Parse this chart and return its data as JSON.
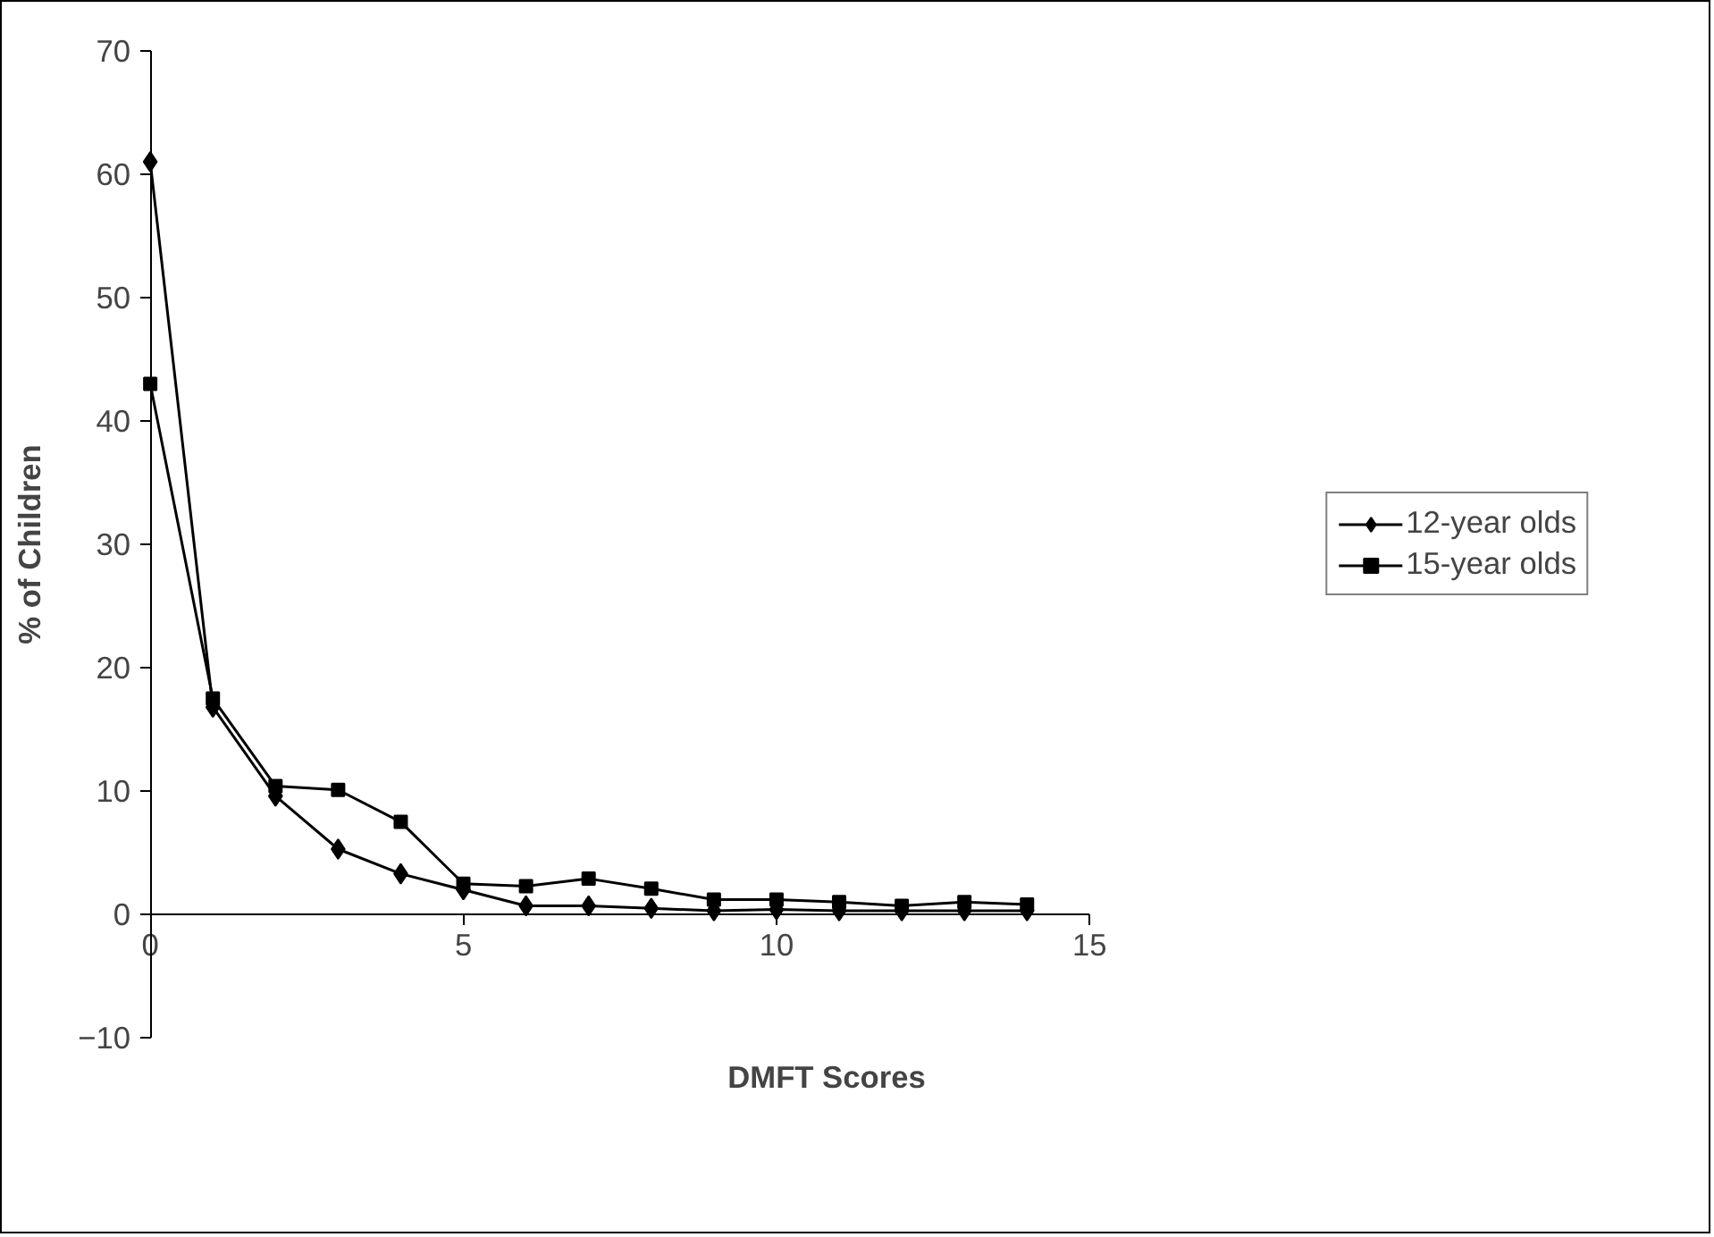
{
  "chart_data": {
    "type": "line",
    "xlabel": "DMFT Scores",
    "ylabel": "% of Children",
    "x": [
      0,
      1,
      2,
      3,
      4,
      5,
      6,
      7,
      8,
      9,
      10,
      11,
      12,
      13,
      14
    ],
    "series": [
      {
        "name": "12-year olds",
        "color": "#000000",
        "marker": "diamond",
        "values": [
          61,
          16.8,
          9.6,
          5.3,
          3.3,
          2.0,
          0.7,
          0.7,
          0.5,
          0.3,
          0.4,
          0.3,
          0.3,
          0.3,
          0.3
        ]
      },
      {
        "name": "15-year olds",
        "color": "#000000",
        "marker": "square",
        "values": [
          43,
          17.5,
          10.4,
          10.1,
          7.5,
          2.5,
          2.3,
          2.9,
          2.1,
          1.2,
          1.2,
          1.0,
          0.7,
          1.0,
          0.8
        ]
      }
    ],
    "xlim": [
      0,
      15
    ],
    "ylim": [
      -10,
      70
    ],
    "xticks": [
      0,
      5,
      10,
      15
    ],
    "yticks": [
      -10,
      0,
      10,
      20,
      30,
      40,
      50,
      60,
      70
    ],
    "grid": false,
    "legend": "right",
    "line_style": "solid"
  }
}
